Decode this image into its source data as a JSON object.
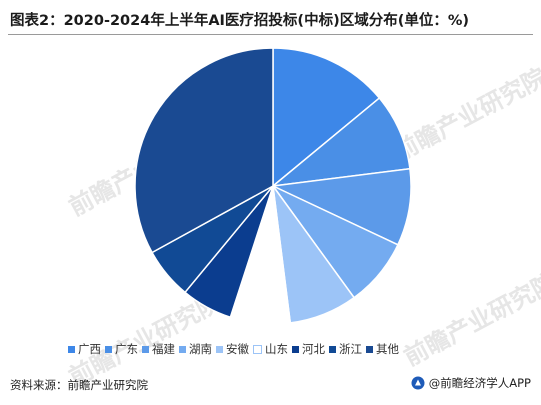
{
  "header": {
    "title": "图表2：2020-2024年上半年AI医疗招投标(中标)区域分布(单位：%)"
  },
  "footer": {
    "source": "资料来源：前瞻产业研究院",
    "brand": "@前瞻经济学人APP"
  },
  "watermark": {
    "text": "前瞻产业研究院"
  },
  "chart_data": {
    "type": "pie",
    "title": "图表2：2020-2024年上半年AI医疗招投标(中标)区域分布(单位：%)",
    "start_angle": "12 o'clock, clockwise",
    "legend_position": "bottom",
    "slices": [
      {
        "label": "广西",
        "value": 14,
        "color": "#3d87e8"
      },
      {
        "label": "广东",
        "value": 9,
        "color": "#4a8fe6"
      },
      {
        "label": "福建",
        "value": 9,
        "color": "#5c9ae9"
      },
      {
        "label": "湖南",
        "value": 8,
        "color": "#74abf0"
      },
      {
        "label": "安徽",
        "value": 8,
        "color": "#9cc4f7"
      },
      {
        "label": "山东",
        "value": 7,
        "color": "#ffffff"
      },
      {
        "label": "河北",
        "value": 6,
        "color": "#0b3d8f"
      },
      {
        "label": "浙江",
        "value": 6,
        "color": "#114a95"
      },
      {
        "label": "其他",
        "value": 33,
        "color": "#1a4a92"
      }
    ]
  }
}
